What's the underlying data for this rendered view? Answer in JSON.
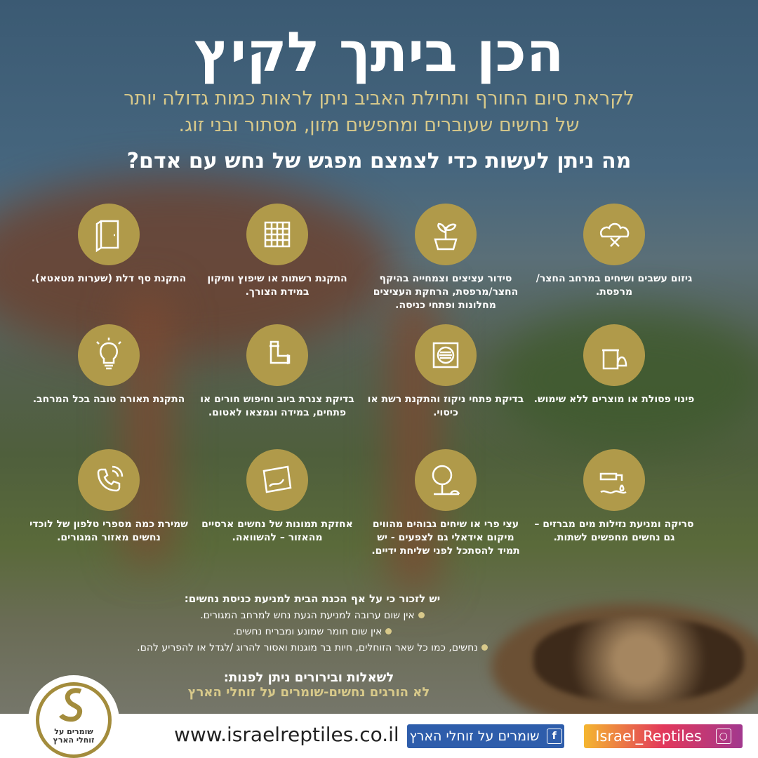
{
  "title": "הכן ביתך לקיץ",
  "subtitle": [
    "לקראת סיום החורף ותחילת האביב ניתן לראות כמות גדולה יותר",
    "של נחשים שעוברים ומחפשים מזון, מסתור ובני זוג."
  ],
  "question": "מה ניתן לעשות כדי לצמצם מפגש של נחש עם אדם?",
  "colors": {
    "gold": "#b09a4a",
    "sub_text": "#d8c98a",
    "facebook": "#2e5dab"
  },
  "tips": [
    {
      "icon": "hedge-trimming-icon",
      "text": "גיזום עשבים ושיחים במרחב החצר/ מרפסת."
    },
    {
      "icon": "plant-pot-icon",
      "text": "סידור עציצים וצמחייה בהיקף החצר/מרפסת, הרחקת העציצים מחלונות ופתחי כניסה."
    },
    {
      "icon": "mesh-screen-icon",
      "text": "התקנת רשתות או שיפוץ ותיקון במידת הצורך."
    },
    {
      "icon": "door-icon",
      "text": "התקנת סף דלת (שערות מטאטא)."
    },
    {
      "icon": "trash-disposal-icon",
      "text": "פינוי פסולת או מוצרים ללא שימוש."
    },
    {
      "icon": "drain-icon",
      "text": "בדיקת פתחי ניקוז והתקנת רשת או כיסוי."
    },
    {
      "icon": "pipe-icon",
      "text": "בדיקת צנרת ביוב וחיפוש חורים או פתחים, במידה ונמצאו לאטום."
    },
    {
      "icon": "light-bulb-icon",
      "text": "התקנת תאורה טובה בכל המרחב."
    },
    {
      "icon": "water-leak-icon",
      "text": "סריקה ומניעת נזילות מים מברזים – גם נחשים מחפשים לשתות."
    },
    {
      "icon": "fruit-tree-icon",
      "text": "עצי פרי או שיחים גבוהים מהווים מיקום אידאלי גם לצפעים - יש תמיד להסתכל לפני שליחת ידיים."
    },
    {
      "icon": "snake-photo-icon",
      "text": "אחזקת תמונות של נחשים ארסיים מהאזור – להשוואה."
    },
    {
      "icon": "phone-icon",
      "text": "שמירת כמה מספרי טלפון של לוכדי נחשים מאזור המגורים."
    }
  ],
  "note": {
    "heading": "יש לזכור כי על אף הכנת הבית למניעת כניסת נחשים:",
    "bullets": [
      "אין שום ערובה למניעת הגעת נחש למרחב המגורים.",
      "אין שום חומר שמונע ומבריח נחשים.",
      "נחשים, כמו כל שאר הזוחלים, חיות בר מוגנות ואסור להרוג /לגדל או להפריע להם."
    ]
  },
  "contact": {
    "line1": "לשאלות ובירורים ניתן לפנות:",
    "line2": "לא הורגים נחשים-שומרים על זוחלי הארץ"
  },
  "footer": {
    "url": "www.israelreptiles.co.il",
    "facebook": "שומרים על זוחלי הארץ",
    "instagram": "Israel_Reptiles",
    "logo_text": [
      "שומרים על",
      "זוחלי הארץ"
    ]
  }
}
